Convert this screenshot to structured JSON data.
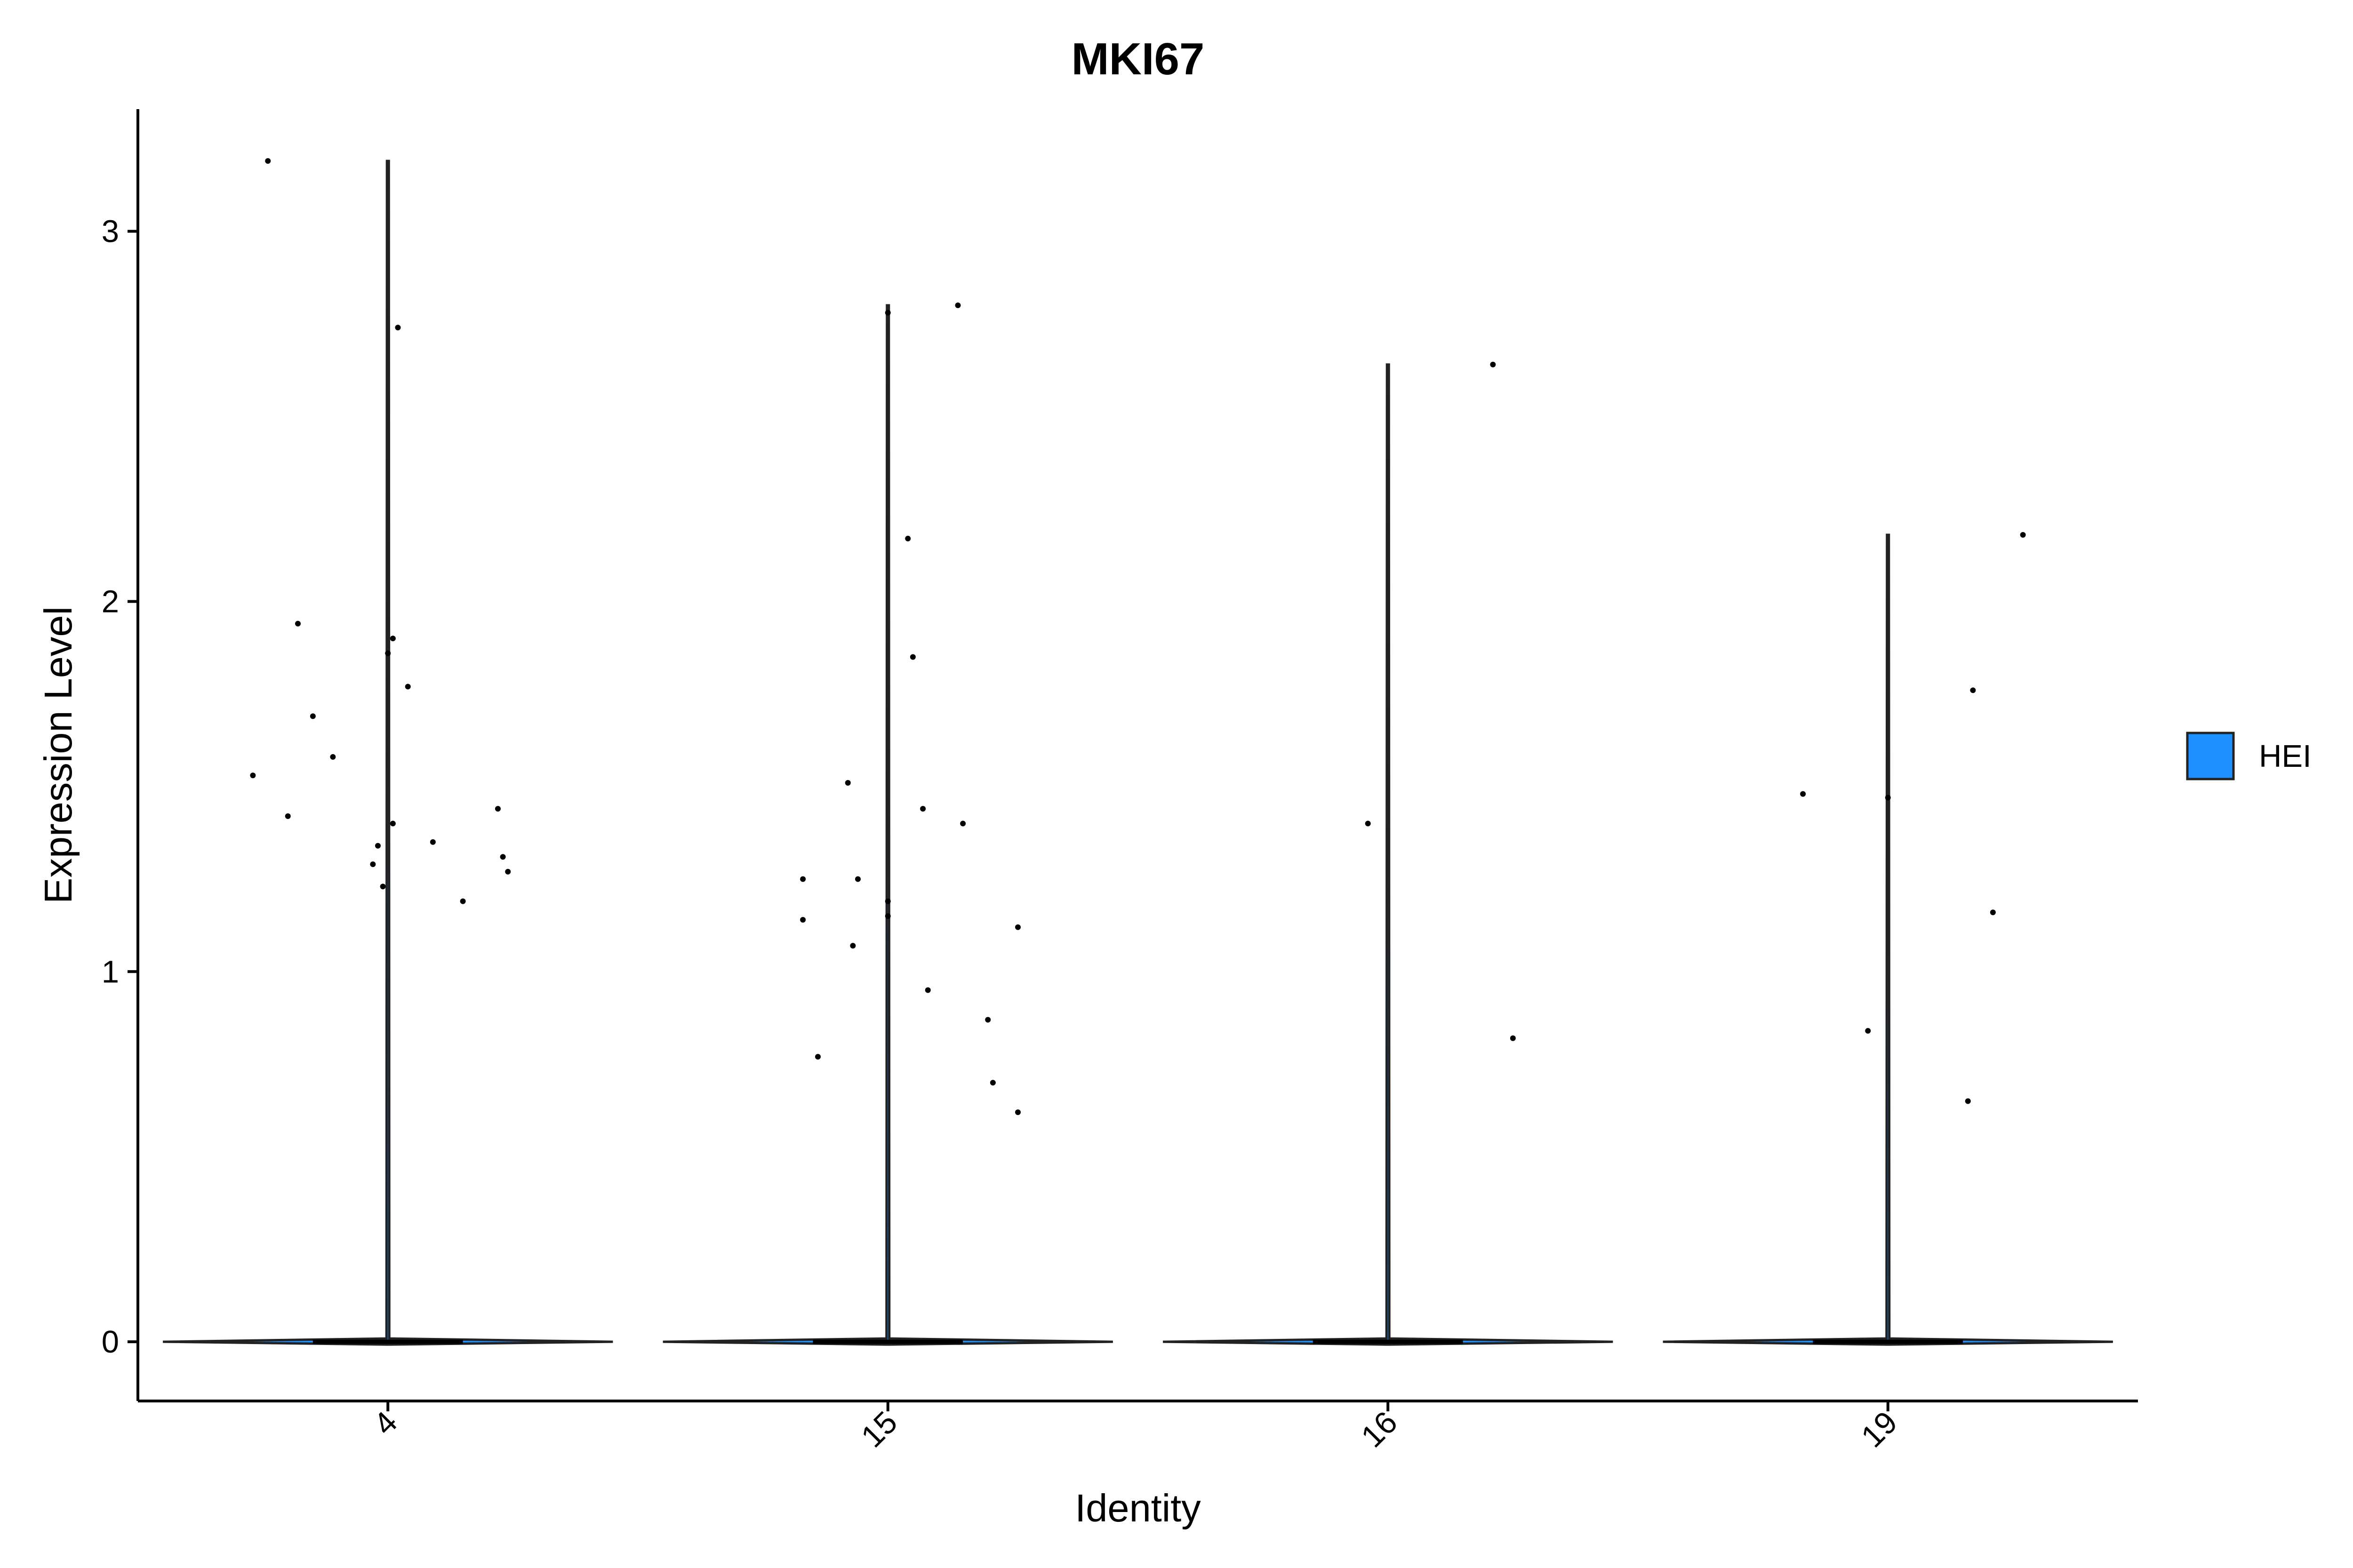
{
  "chart_data": {
    "type": "violin",
    "title": "MKI67",
    "xlabel": "Identity",
    "ylabel": "Expression Level",
    "categories": [
      "4",
      "15",
      "16",
      "19"
    ],
    "ylim": [
      -0.16,
      3.33
    ],
    "yticks": [
      0,
      1,
      2,
      3
    ],
    "grid": false,
    "legend": {
      "position": "right",
      "entries": [
        {
          "name": "HEI",
          "color": "#1E90FF"
        }
      ]
    },
    "series": [
      {
        "name": "HEI",
        "color": "#1E90FF",
        "groups": [
          {
            "category": "4",
            "max": 3.19,
            "points": [
              [
                -0.24,
                3.19
              ],
              [
                0.02,
                2.74
              ],
              [
                -0.18,
                1.94
              ],
              [
                0.01,
                1.9
              ],
              [
                0.0,
                1.86
              ],
              [
                0.04,
                1.77
              ],
              [
                -0.15,
                1.69
              ],
              [
                -0.11,
                1.58
              ],
              [
                -0.27,
                1.53
              ],
              [
                0.22,
                1.44
              ],
              [
                -0.2,
                1.42
              ],
              [
                0.01,
                1.4
              ],
              [
                0.09,
                1.35
              ],
              [
                -0.02,
                1.34
              ],
              [
                0.23,
                1.31
              ],
              [
                -0.03,
                1.29
              ],
              [
                0.24,
                1.27
              ],
              [
                -0.01,
                1.23
              ],
              [
                0.15,
                1.19
              ]
            ]
          },
          {
            "category": "15",
            "max": 2.8,
            "points": [
              [
                0.14,
                2.8
              ],
              [
                0.0,
                2.78
              ],
              [
                0.04,
                2.17
              ],
              [
                0.05,
                1.85
              ],
              [
                -0.08,
                1.51
              ],
              [
                0.07,
                1.44
              ],
              [
                0.15,
                1.4
              ],
              [
                -0.17,
                1.25
              ],
              [
                -0.06,
                1.25
              ],
              [
                0.0,
                1.19
              ],
              [
                0.0,
                1.15
              ],
              [
                -0.17,
                1.14
              ],
              [
                0.26,
                1.12
              ],
              [
                -0.07,
                1.07
              ],
              [
                0.08,
                0.95
              ],
              [
                0.2,
                0.87
              ],
              [
                -0.14,
                0.77
              ],
              [
                0.21,
                0.7
              ],
              [
                0.26,
                0.62
              ]
            ]
          },
          {
            "category": "16",
            "max": 2.64,
            "points": [
              [
                0.21,
                2.64
              ],
              [
                -0.04,
                1.4
              ],
              [
                0.25,
                0.82
              ]
            ]
          },
          {
            "category": "19",
            "max": 2.18,
            "points": [
              [
                0.27,
                2.18
              ],
              [
                0.17,
                1.76
              ],
              [
                -0.17,
                1.48
              ],
              [
                0.0,
                1.47
              ],
              [
                0.21,
                1.16
              ],
              [
                -0.04,
                0.84
              ],
              [
                0.16,
                0.65
              ]
            ]
          }
        ]
      }
    ]
  }
}
